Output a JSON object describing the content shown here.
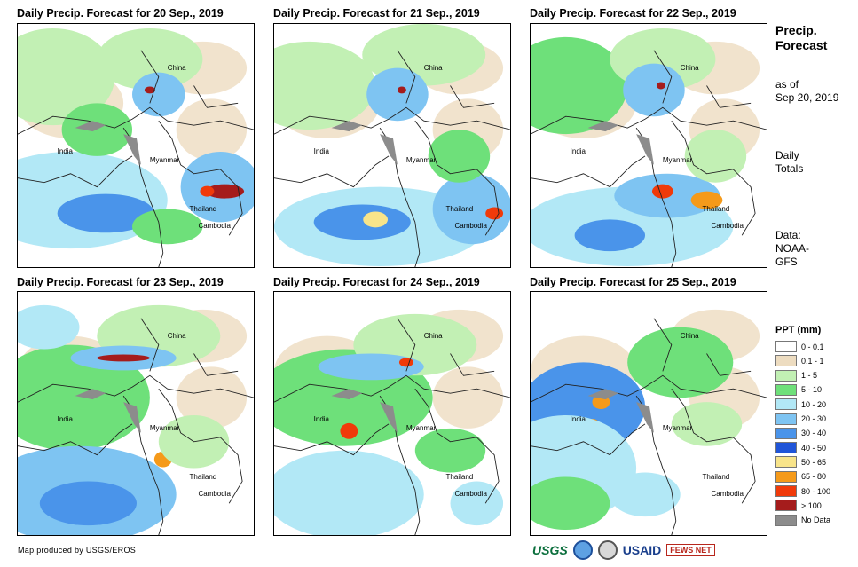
{
  "panels": [
    {
      "title": "Daily Precip. Forecast for 20 Sep., 2019"
    },
    {
      "title": "Daily Precip. Forecast for 21 Sep., 2019"
    },
    {
      "title": "Daily Precip. Forecast for 22 Sep., 2019"
    },
    {
      "title": "Daily Precip. Forecast for 23 Sep., 2019"
    },
    {
      "title": "Daily Precip. Forecast for 24 Sep., 2019"
    },
    {
      "title": "Daily Precip. Forecast for 25 Sep., 2019"
    }
  ],
  "map_labels": {
    "china": "China",
    "india": "India",
    "myanmar": "Myanmar",
    "thailand": "Thailand",
    "cambodia": "Cambodia"
  },
  "side": {
    "title_line1": "Precip.",
    "title_line2": "Forecast",
    "asof_line1": "as of",
    "asof_line2": "Sep 20, 2019",
    "totals_line1": "Daily",
    "totals_line2": "Totals",
    "data_line1": "Data:",
    "data_line2": "NOAA-",
    "data_line3": "GFS"
  },
  "legend": {
    "title": "PPT (mm)",
    "items": [
      {
        "label": "0 - 0.1",
        "color": "#ffffff"
      },
      {
        "label": "0.1 - 1",
        "color": "#eddcc0"
      },
      {
        "label": "1 - 5",
        "color": "#c2f0b4"
      },
      {
        "label": "5 - 10",
        "color": "#6ee07a"
      },
      {
        "label": "10 - 20",
        "color": "#b2e8f6"
      },
      {
        "label": "20 - 30",
        "color": "#7ec4f2"
      },
      {
        "label": "30 - 40",
        "color": "#4a94ea"
      },
      {
        "label": "40 - 50",
        "color": "#2055d8"
      },
      {
        "label": "50 - 65",
        "color": "#f8e48a"
      },
      {
        "label": "65 - 80",
        "color": "#f59a1a"
      },
      {
        "label": "80 - 100",
        "color": "#f03a0a"
      },
      {
        "label": "> 100",
        "color": "#a51c1c"
      },
      {
        "label": "No Data",
        "color": "#8c8c8c"
      }
    ]
  },
  "credit": "Map produced by USGS/EROS",
  "logos": {
    "usgs": "USGS",
    "usaid": "USAID",
    "fewsnet": "FEWS NET"
  }
}
